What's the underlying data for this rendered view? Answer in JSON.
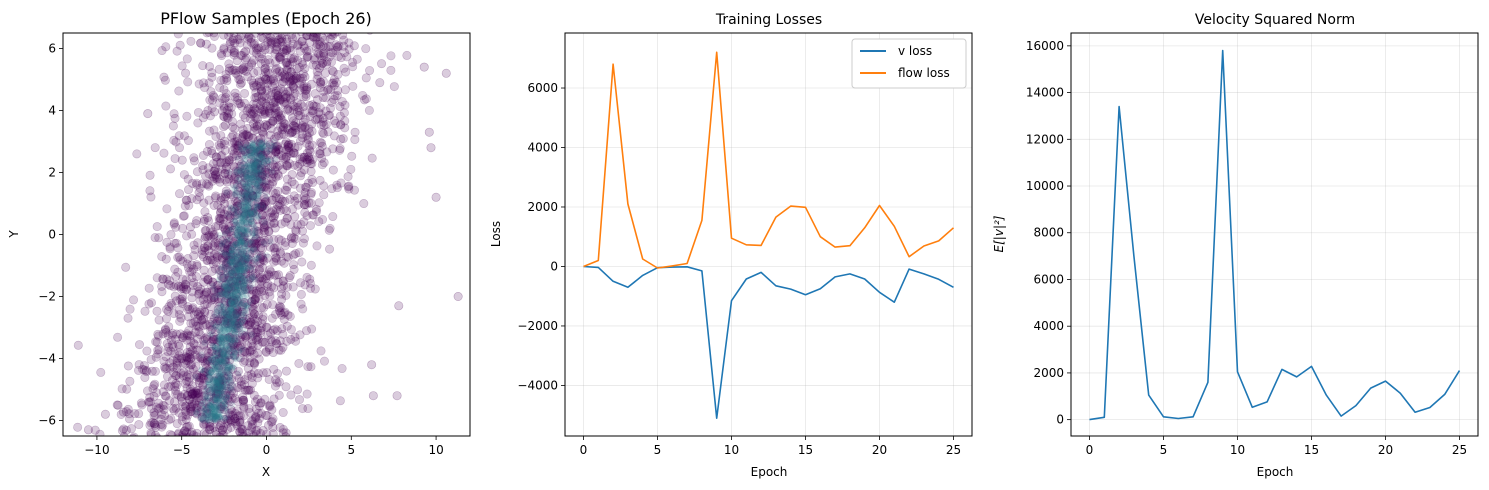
{
  "chart_data": [
    {
      "type": "scatter",
      "title": "PFlow Samples (Epoch 26)",
      "xlabel": "X",
      "ylabel": "Y",
      "xlim": [
        -12,
        12
      ],
      "ylim": [
        -6.5,
        6.5
      ],
      "xticks": [
        -10,
        -5,
        0,
        5,
        10
      ],
      "yticks": [
        -6,
        -4,
        -2,
        0,
        2,
        4,
        6
      ],
      "grid": false,
      "point_color": "#440154",
      "core_color": "#2a788e",
      "core_line": [
        [
          -3.2,
          -6.0
        ],
        [
          0.4,
          6.0
        ]
      ],
      "outliers": [
        [
          11.3,
          -2.0
        ],
        [
          10.0,
          1.2
        ],
        [
          9.7,
          2.8
        ],
        [
          9.3,
          5.4
        ],
        [
          7.8,
          -2.3
        ],
        [
          7.7,
          -5.2
        ],
        [
          6.3,
          -5.2
        ],
        [
          6.2,
          -4.2
        ],
        [
          10.6,
          5.2
        ],
        [
          9.6,
          3.3
        ],
        [
          -9.5,
          -5.8
        ],
        [
          -8.8,
          -5.5
        ],
        [
          -7.0,
          3.9
        ],
        [
          -10.5,
          -6.3
        ]
      ]
    },
    {
      "type": "line",
      "title": "Training Losses",
      "xlabel": "Epoch",
      "ylabel": "Loss",
      "xlim": [
        -1.25,
        26.25
      ],
      "ylim": [
        -5700,
        7850
      ],
      "xticks": [
        0,
        5,
        10,
        15,
        20,
        25
      ],
      "yticks": [
        -4000,
        -2000,
        0,
        2000,
        4000,
        6000
      ],
      "grid": true,
      "legend": "top-right",
      "x": [
        0,
        1,
        2,
        3,
        4,
        5,
        6,
        7,
        8,
        9,
        10,
        11,
        12,
        13,
        14,
        15,
        16,
        17,
        18,
        19,
        20,
        21,
        22,
        23,
        24,
        25
      ],
      "series": [
        {
          "name": "v loss",
          "color": "#1f77b4",
          "values": [
            0,
            -30,
            -500,
            -700,
            -300,
            -40,
            -20,
            -10,
            -150,
            -5100,
            -1150,
            -420,
            -200,
            -650,
            -760,
            -950,
            -750,
            -350,
            -250,
            -420,
            -870,
            -1200,
            -90,
            -250,
            -430,
            -700
          ]
        },
        {
          "name": "flow loss",
          "color": "#ff7f0e",
          "values": [
            0,
            200,
            6800,
            2100,
            250,
            -50,
            20,
            100,
            1550,
            7200,
            950,
            730,
            710,
            1660,
            2030,
            1990,
            1000,
            650,
            700,
            1300,
            2050,
            1350,
            330,
            690,
            860,
            1300
          ]
        }
      ]
    },
    {
      "type": "line",
      "title": "Velocity Squared Norm",
      "xlabel": "Epoch",
      "ylabel": "E[|v|²]",
      "xlim": [
        -1.25,
        26.25
      ],
      "ylim": [
        -700,
        16550
      ],
      "xticks": [
        0,
        5,
        10,
        15,
        20,
        25
      ],
      "yticks": [
        0,
        2000,
        4000,
        6000,
        8000,
        10000,
        12000,
        14000,
        16000
      ],
      "grid": true,
      "x": [
        0,
        1,
        2,
        3,
        4,
        5,
        6,
        7,
        8,
        9,
        10,
        11,
        12,
        13,
        14,
        15,
        16,
        17,
        18,
        19,
        20,
        21,
        22,
        23,
        24,
        25
      ],
      "series": [
        {
          "color": "#1f77b4",
          "values": [
            0,
            100,
            13400,
            7000,
            1050,
            120,
            50,
            120,
            1600,
            15800,
            2050,
            530,
            760,
            2150,
            1830,
            2280,
            1050,
            150,
            600,
            1350,
            1650,
            1130,
            320,
            520,
            1080,
            2100
          ]
        }
      ]
    }
  ]
}
